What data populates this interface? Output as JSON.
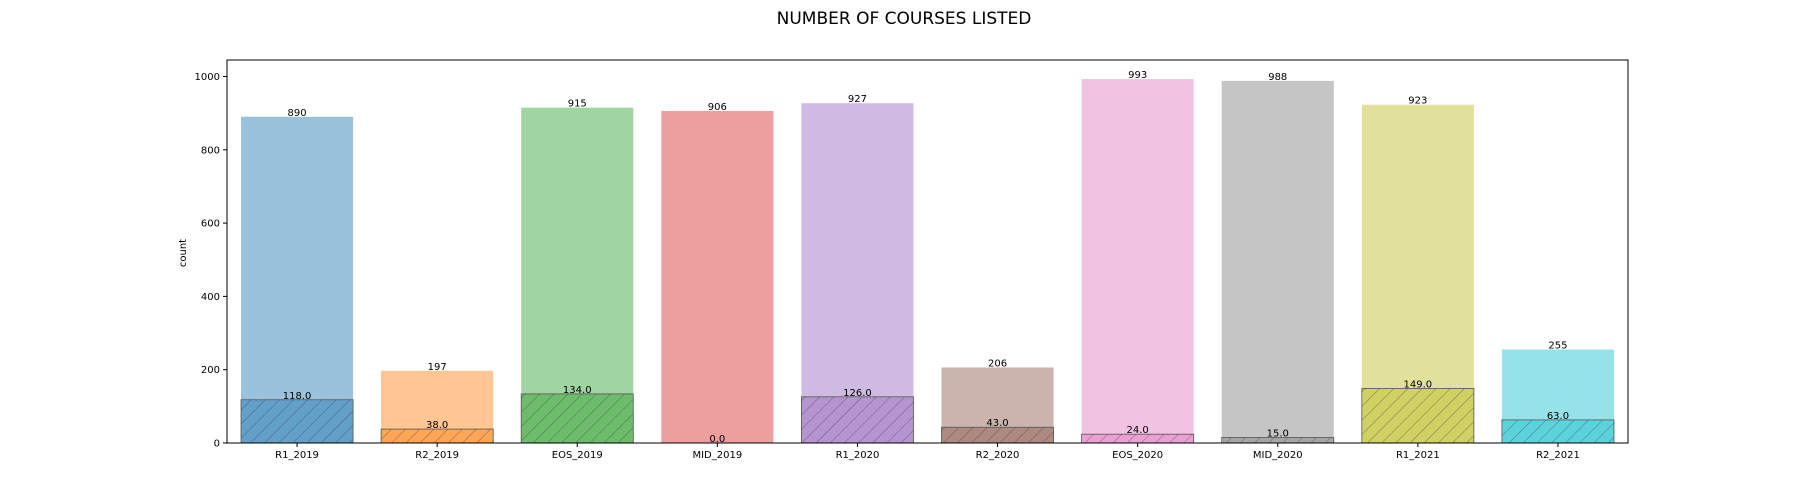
{
  "chart_data": {
    "type": "bar",
    "title": "NUMBER OF COURSES LISTED",
    "xlabel": "",
    "ylabel": "count",
    "ylim": [
      0,
      1045
    ],
    "yticks": [
      0,
      200,
      400,
      600,
      800,
      1000
    ],
    "grid": false,
    "categories": [
      "R1_2019",
      "R2_2019",
      "EOS_2019",
      "MID_2019",
      "R1_2020",
      "R2_2020",
      "EOS_2020",
      "MID_2020",
      "R1_2021",
      "R2_2021"
    ],
    "colors": [
      "#1f77b4",
      "#ff7f0e",
      "#2ca02c",
      "#d62728",
      "#9467bd",
      "#8c564b",
      "#e377c2",
      "#7f7f7f",
      "#bcbd22",
      "#17becf"
    ],
    "series": [
      {
        "values": [
          890,
          197,
          915,
          906,
          927,
          206,
          993,
          988,
          923,
          255
        ],
        "labels": [
          "890",
          "197",
          "915",
          "906",
          "927",
          "206",
          "993",
          "988",
          "923",
          "255"
        ],
        "style": "solid"
      },
      {
        "values": [
          118,
          38,
          134,
          0,
          126,
          43,
          24,
          15,
          149,
          63
        ],
        "labels": [
          "118.0",
          "38.0",
          "134.0",
          "0.0",
          "126.0",
          "43.0",
          "24.0",
          "15.0",
          "149.0",
          "63.0"
        ],
        "style": "hatched"
      }
    ]
  }
}
